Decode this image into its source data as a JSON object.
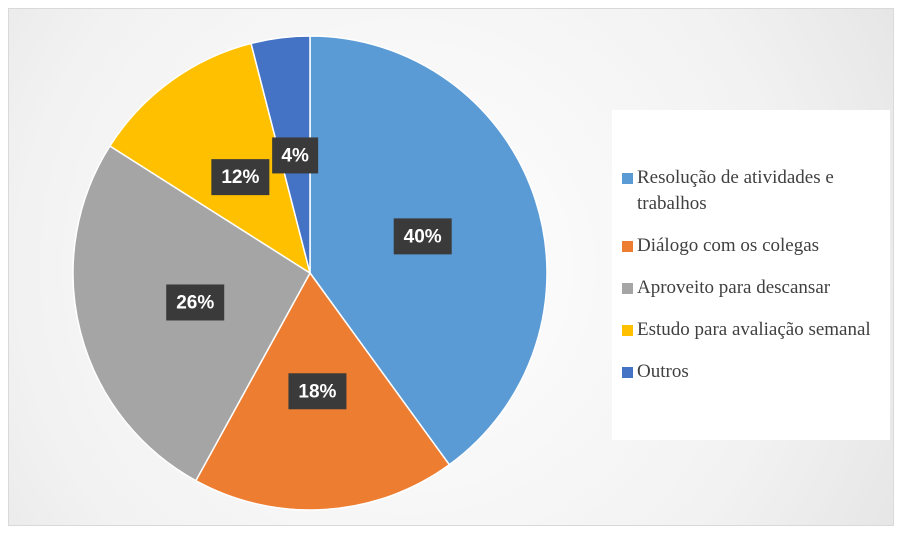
{
  "chart_data": {
    "type": "pie",
    "categories": [
      "Resolução de atividades e trabalhos",
      "Diálogo com os colegas",
      "Aproveito para descansar",
      "Estudo para avaliação semanal",
      "Outros"
    ],
    "values": [
      40,
      18,
      26,
      12,
      4
    ],
    "value_labels": [
      "40%",
      "18%",
      "26%",
      "12%",
      "4%"
    ],
    "colors": [
      "#5b9bd5",
      "#ed7d31",
      "#a5a5a5",
      "#ffc000",
      "#4472c4"
    ],
    "legend": "right"
  }
}
